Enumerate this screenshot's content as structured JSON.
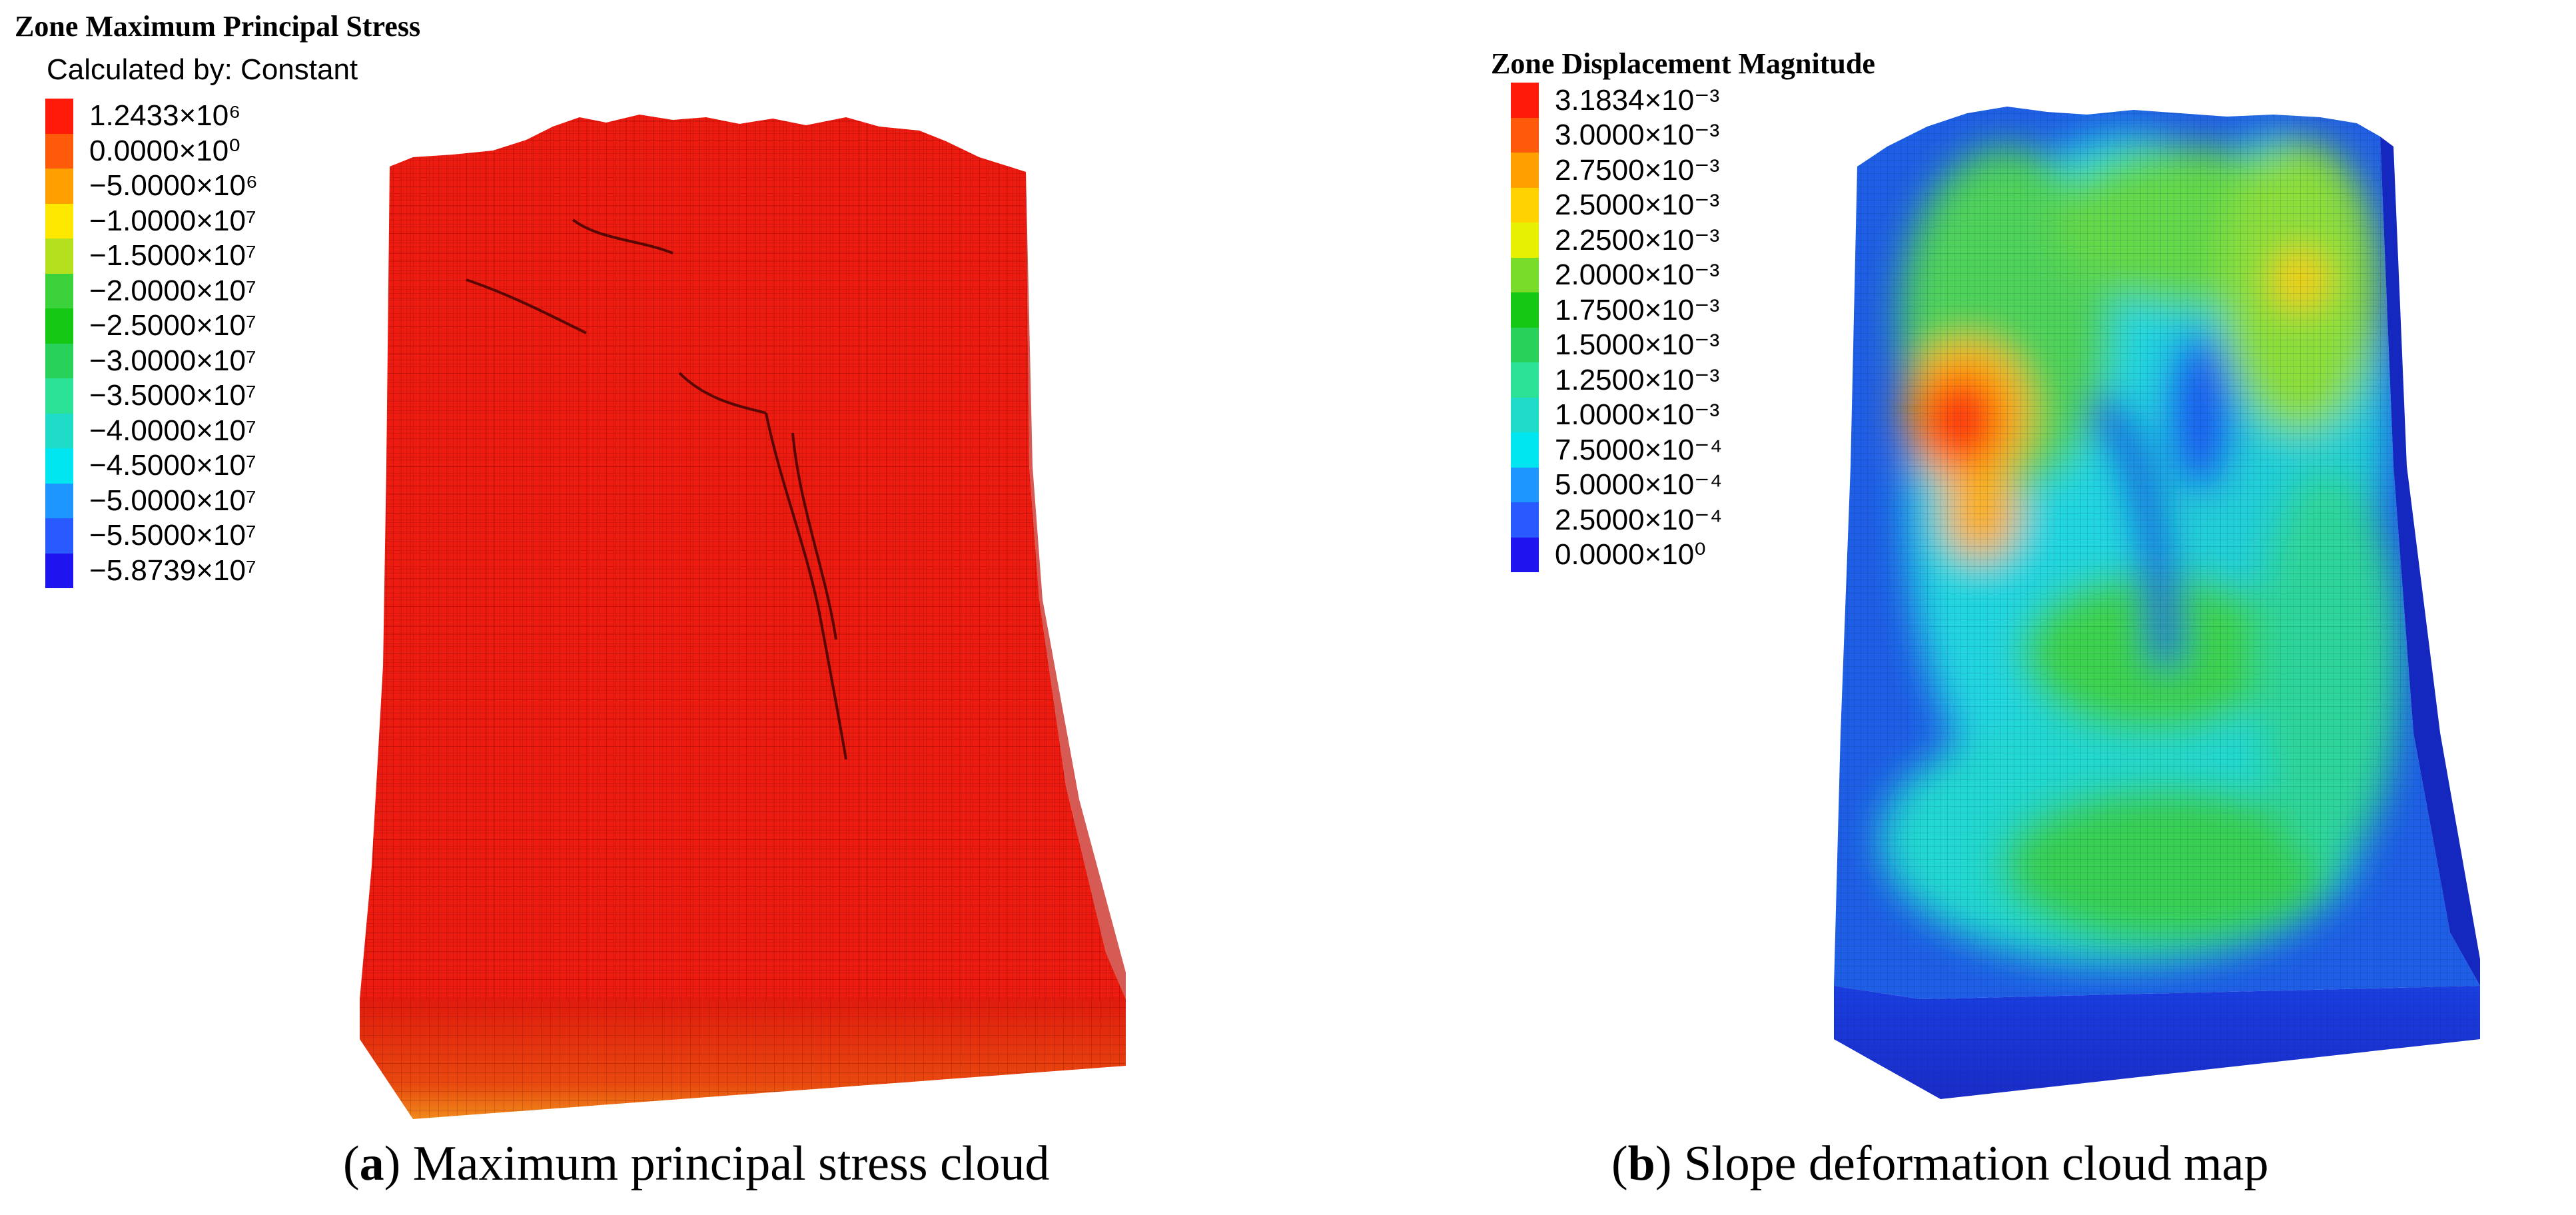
{
  "panel_a": {
    "legend": {
      "title": "Zone Maximum Principal Stress",
      "subtitle": "Calculated by: Constant",
      "entries": [
        {
          "label": "1.2433×10⁶",
          "color": "#ff1a0a"
        },
        {
          "label": "0.0000×10⁰",
          "color": "#ff5a0a"
        },
        {
          "label": "−5.0000×10⁶",
          "color": "#ffa000"
        },
        {
          "label": "−1.0000×10⁷",
          "color": "#ffe800"
        },
        {
          "label": "−1.5000×10⁷",
          "color": "#b4e01e"
        },
        {
          "label": "−2.0000×10⁷",
          "color": "#3cd23c"
        },
        {
          "label": "−2.5000×10⁷",
          "color": "#14c814"
        },
        {
          "label": "−3.0000×10⁷",
          "color": "#28d25a"
        },
        {
          "label": "−3.5000×10⁷",
          "color": "#2ce296"
        },
        {
          "label": "−4.0000×10⁷",
          "color": "#1edcc8"
        },
        {
          "label": "−4.5000×10⁷",
          "color": "#00e6f0"
        },
        {
          "label": "−5.0000×10⁷",
          "color": "#1e96ff"
        },
        {
          "label": "−5.5000×10⁷",
          "color": "#285aff"
        },
        {
          "label": "−5.8739×10⁷",
          "color": "#1e14f0"
        }
      ]
    },
    "caption": {
      "letter": "a",
      "text": ") Maximum principal stress cloud"
    }
  },
  "panel_b": {
    "legend": {
      "title": "Zone Displacement Magnitude",
      "entries": [
        {
          "label": "3.1834×10⁻³",
          "color": "#ff1a0a"
        },
        {
          "label": "3.0000×10⁻³",
          "color": "#ff5a0a"
        },
        {
          "label": "2.7500×10⁻³",
          "color": "#ffa000"
        },
        {
          "label": "2.5000×10⁻³",
          "color": "#ffd200"
        },
        {
          "label": "2.2500×10⁻³",
          "color": "#e6f000"
        },
        {
          "label": "2.0000×10⁻³",
          "color": "#78dc28"
        },
        {
          "label": "1.7500×10⁻³",
          "color": "#14c814"
        },
        {
          "label": "1.5000×10⁻³",
          "color": "#28d25a"
        },
        {
          "label": "1.2500×10⁻³",
          "color": "#2ce296"
        },
        {
          "label": "1.0000×10⁻³",
          "color": "#1edcc8"
        },
        {
          "label": "7.5000×10⁻⁴",
          "color": "#00e6f0"
        },
        {
          "label": "5.0000×10⁻⁴",
          "color": "#1e96ff"
        },
        {
          "label": "2.5000×10⁻⁴",
          "color": "#285aff"
        },
        {
          "label": "0.0000×10⁰",
          "color": "#1e14f0"
        }
      ]
    },
    "caption": {
      "letter": "b",
      "text": ") Slope deformation cloud map"
    }
  },
  "colors": {
    "stress_surface": "#ee1c10",
    "base_blue": "#1f2fd8",
    "caption_text": "#000000"
  }
}
